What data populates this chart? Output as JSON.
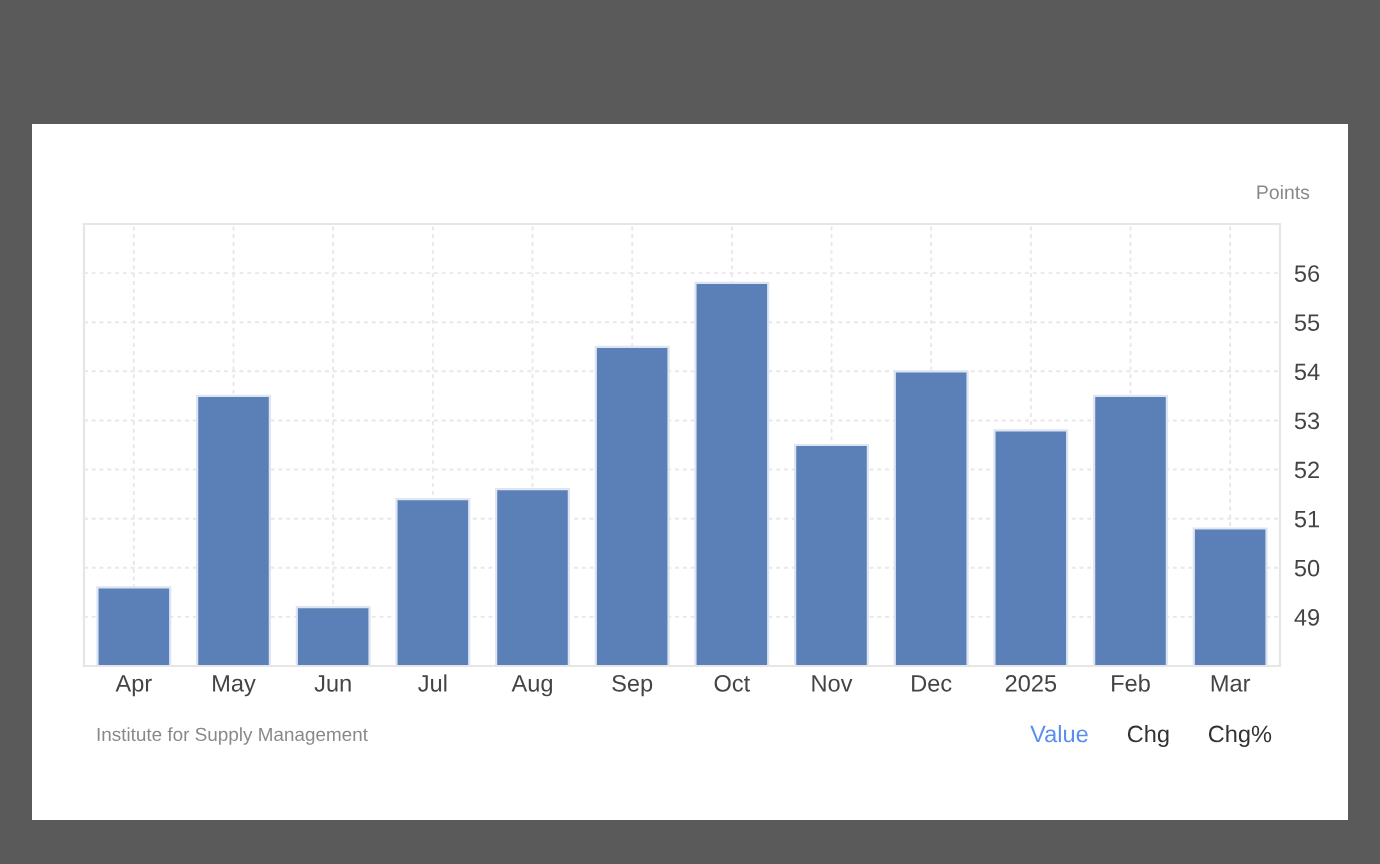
{
  "chart_data": {
    "type": "bar",
    "ylabel": "Points",
    "categories": [
      "Apr",
      "May",
      "Jun",
      "Jul",
      "Aug",
      "Sep",
      "Oct",
      "Nov",
      "Dec",
      "2025",
      "Feb",
      "Mar"
    ],
    "values": [
      49.6,
      53.5,
      49.2,
      51.4,
      51.6,
      54.5,
      55.8,
      52.5,
      54.0,
      52.8,
      53.5,
      50.8
    ],
    "color": "#5b7fb7",
    "ylim": [
      48,
      57
    ],
    "yticks": [
      49,
      50,
      51,
      52,
      53,
      54,
      55,
      56
    ],
    "grid": true,
    "annotations": [
      "Institute for Supply Management",
      "Value",
      "Chg",
      "Chg%"
    ]
  }
}
